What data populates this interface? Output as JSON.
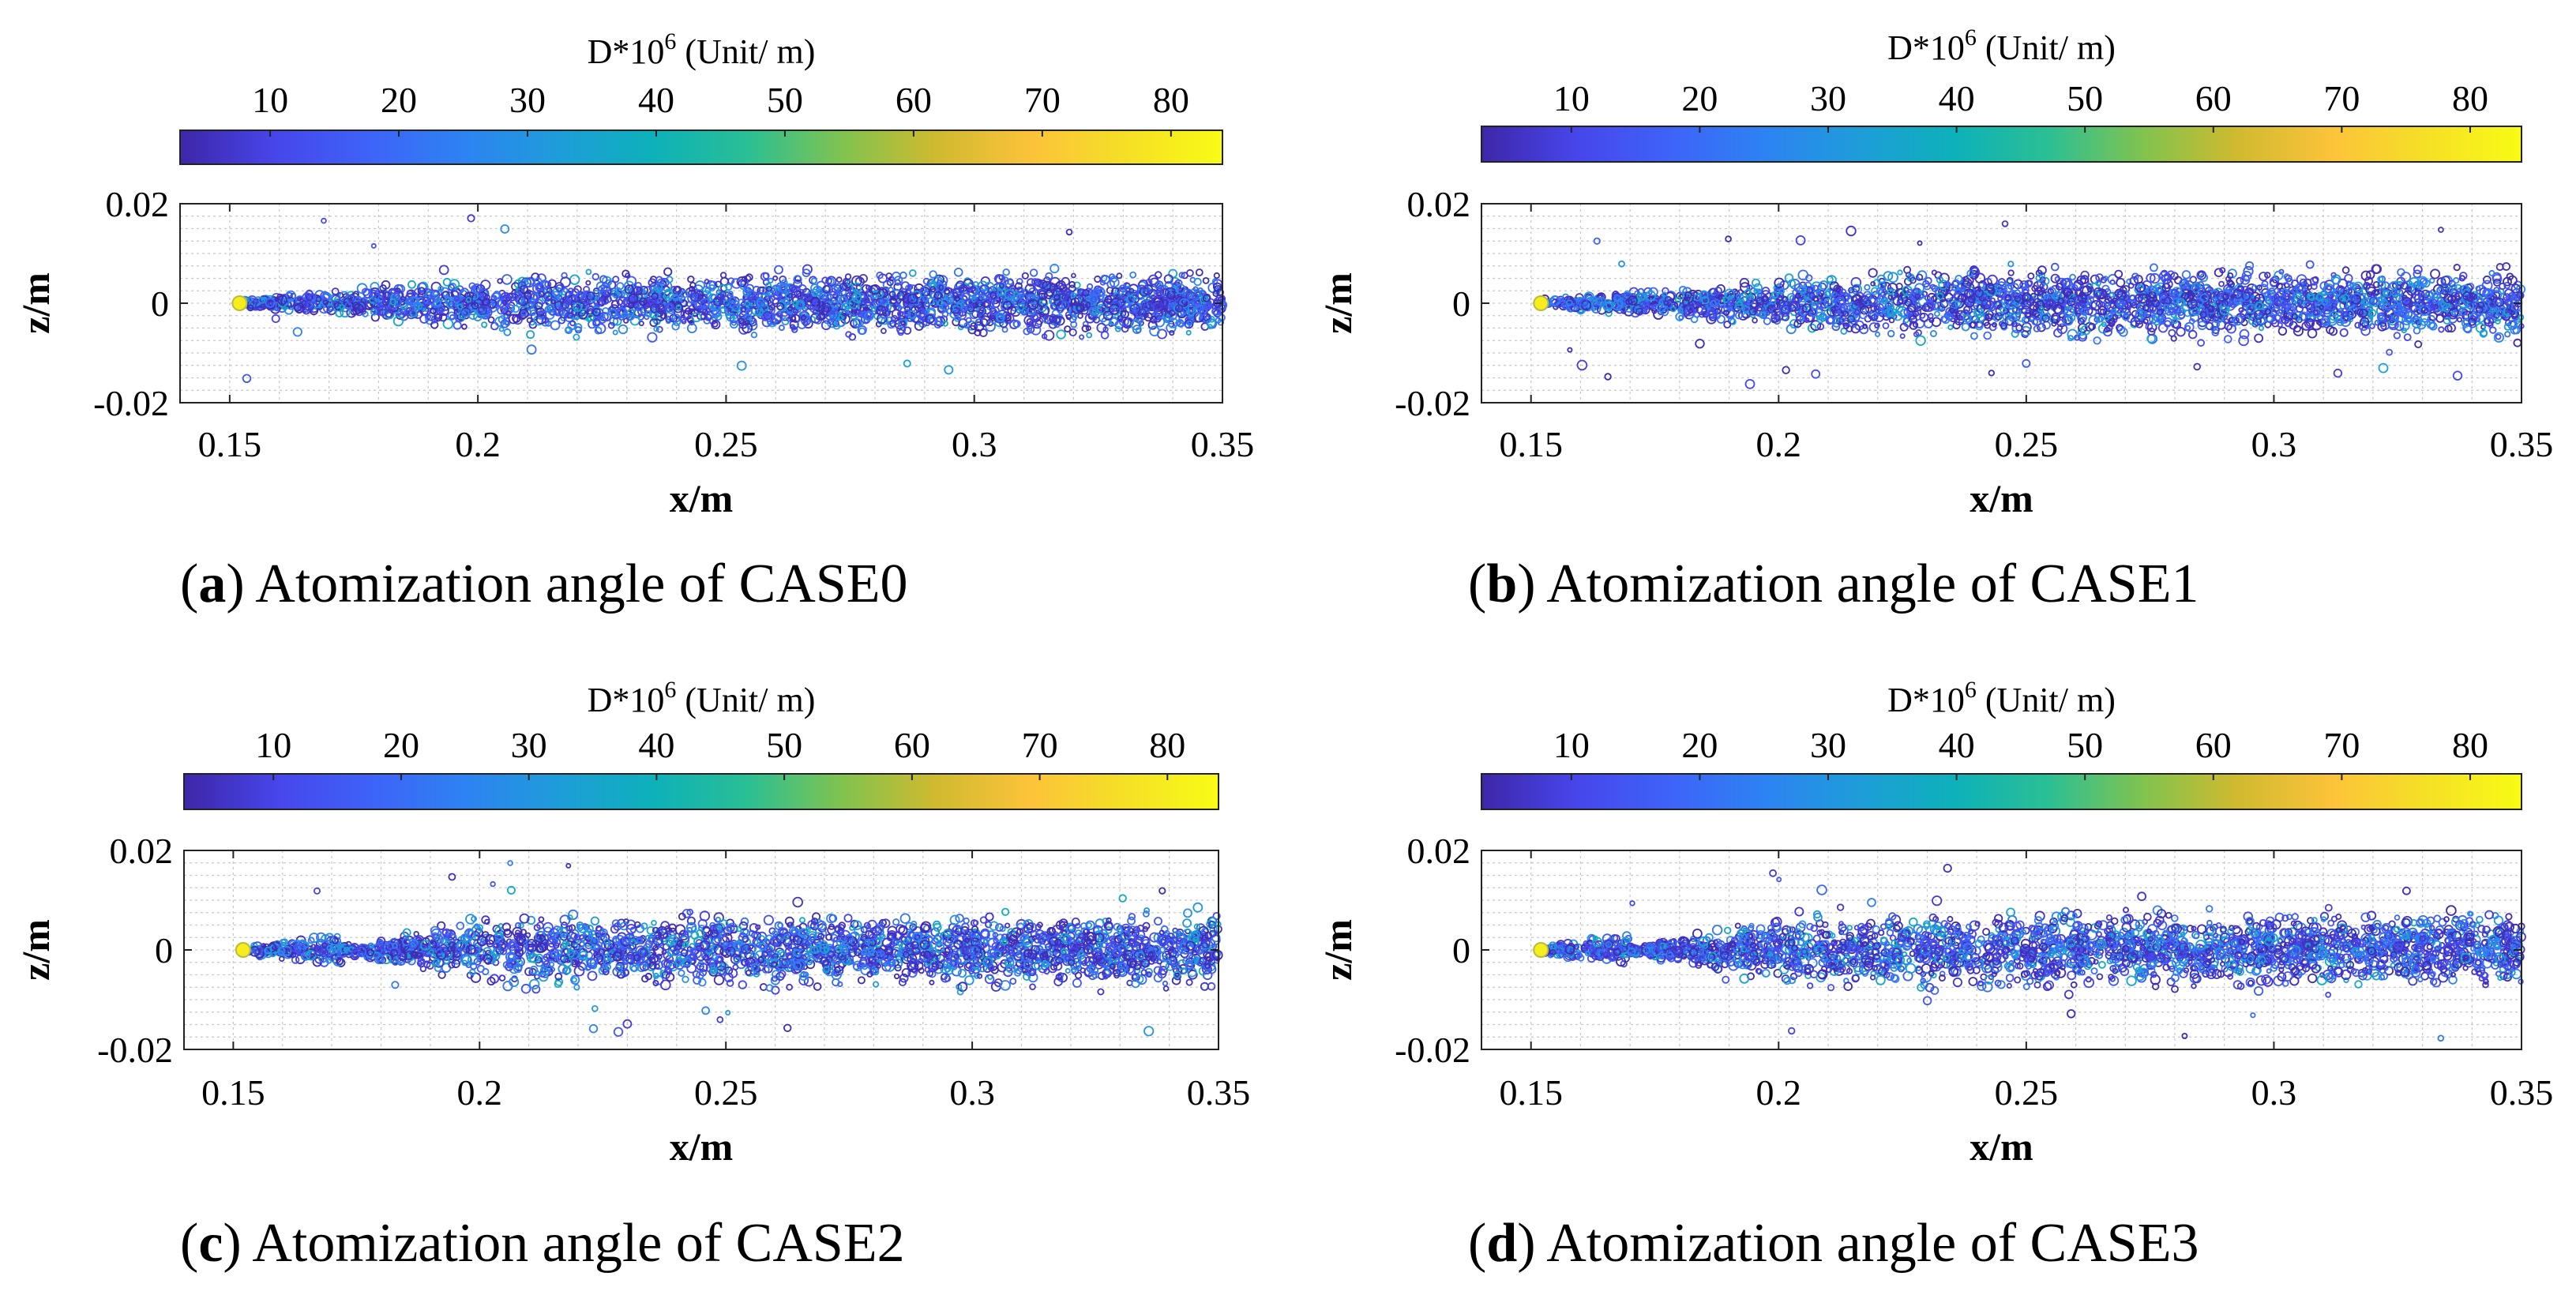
{
  "colorbar": {
    "title_prefix": "D*10",
    "title_exp": "6",
    "title_suffix": " (Unit/ m)",
    "ticks": [
      10,
      20,
      30,
      40,
      50,
      60,
      70,
      80
    ],
    "range": [
      3,
      84
    ],
    "colors": [
      "#3e26a8",
      "#4746eb",
      "#3e63f8",
      "#2d83f2",
      "#1e9dd9",
      "#0db1b9",
      "#2bbf94",
      "#81c34f",
      "#d0ba2f",
      "#fcc33a",
      "#f5e026",
      "#f9fb15"
    ]
  },
  "chart_data": [
    {
      "type": "scatter",
      "id": "a",
      "panel_letter": "a",
      "caption_text": ") Atomization angle of CASE0",
      "xlabel": "x/m",
      "ylabel": "z/m",
      "xlim": [
        0.14,
        0.35
      ],
      "ylim": [
        -0.02,
        0.02
      ],
      "xticks": [
        0.15,
        0.2,
        0.25,
        0.3,
        0.35
      ],
      "xtick_labels": [
        "0.15",
        "0.2",
        "0.25",
        "0.3",
        "0.35"
      ],
      "yticks": [
        0.02,
        0,
        -0.02
      ],
      "ytick_labels": [
        "0.02",
        "0",
        "-0.02"
      ],
      "grid": true,
      "spray": {
        "origin_x": 0.152,
        "core_end_x": 0.152,
        "max_halfwidth": 0.0075,
        "spread_length": 0.06,
        "seed": 11
      }
    },
    {
      "type": "scatter",
      "id": "b",
      "panel_letter": "b",
      "caption_text": ") Atomization angle of CASE1",
      "xlabel": "x/m",
      "ylabel": "z/m",
      "xlim": [
        0.14,
        0.35
      ],
      "ylim": [
        -0.02,
        0.02
      ],
      "xticks": [
        0.15,
        0.2,
        0.25,
        0.3,
        0.35
      ],
      "xtick_labels": [
        "0.15",
        "0.2",
        "0.25",
        "0.3",
        "0.35"
      ],
      "yticks": [
        0.02,
        0,
        -0.02
      ],
      "ytick_labels": [
        "0.02",
        "0",
        "-0.02"
      ],
      "grid": true,
      "spray": {
        "origin_x": 0.152,
        "core_end_x": 0.152,
        "max_halfwidth": 0.0085,
        "spread_length": 0.07,
        "seed": 23
      }
    },
    {
      "type": "scatter",
      "id": "c",
      "panel_letter": "c",
      "caption_text": ") Atomization angle of CASE2",
      "xlabel": "x/m",
      "ylabel": "z/m",
      "xlim": [
        0.14,
        0.35
      ],
      "ylim": [
        -0.02,
        0.02
      ],
      "xticks": [
        0.15,
        0.2,
        0.25,
        0.3,
        0.35
      ],
      "xtick_labels": [
        "0.15",
        "0.2",
        "0.25",
        "0.3",
        "0.35"
      ],
      "yticks": [
        0.02,
        0,
        -0.02
      ],
      "ytick_labels": [
        "0.02",
        "0",
        "-0.02"
      ],
      "grid": true,
      "spray": {
        "origin_x": 0.152,
        "core_end_x": 0.172,
        "max_halfwidth": 0.009,
        "spread_length": 0.035,
        "seed": 37
      }
    },
    {
      "type": "scatter",
      "id": "d",
      "panel_letter": "d",
      "caption_text": ") Atomization angle of CASE3",
      "xlabel": "x/m",
      "ylabel": "z/m",
      "xlim": [
        0.14,
        0.35
      ],
      "ylim": [
        -0.02,
        0.02
      ],
      "xticks": [
        0.15,
        0.2,
        0.25,
        0.3,
        0.35
      ],
      "xtick_labels": [
        "0.15",
        "0.2",
        "0.25",
        "0.3",
        "0.35"
      ],
      "yticks": [
        0.02,
        0,
        -0.02
      ],
      "ytick_labels": [
        "0.02",
        "0",
        "-0.02"
      ],
      "grid": true,
      "spray": {
        "origin_x": 0.152,
        "core_end_x": 0.17,
        "max_halfwidth": 0.0095,
        "spread_length": 0.035,
        "seed": 53
      }
    }
  ]
}
